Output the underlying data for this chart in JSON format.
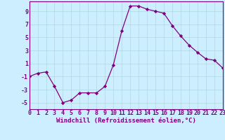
{
  "x": [
    0,
    1,
    2,
    3,
    4,
    5,
    6,
    7,
    8,
    9,
    10,
    11,
    12,
    13,
    14,
    15,
    16,
    17,
    18,
    19,
    20,
    21,
    22,
    23
  ],
  "y": [
    -1.0,
    -0.5,
    -0.3,
    -2.5,
    -5.0,
    -4.6,
    -3.5,
    -3.5,
    -3.5,
    -2.5,
    0.8,
    6.0,
    9.8,
    9.8,
    9.3,
    9.0,
    8.7,
    6.8,
    5.2,
    3.8,
    2.7,
    1.7,
    1.5,
    0.3
  ],
  "line_color": "#800080",
  "marker": "D",
  "marker_size": 2.2,
  "bg_color": "#cceeff",
  "grid_color": "#b0dde8",
  "ylim": [
    -6,
    10.5
  ],
  "xlim": [
    0,
    23
  ],
  "yticks": [
    -5,
    -3,
    -1,
    1,
    3,
    5,
    7,
    9
  ],
  "xticks": [
    0,
    1,
    2,
    3,
    4,
    5,
    6,
    7,
    8,
    9,
    10,
    11,
    12,
    13,
    14,
    15,
    16,
    17,
    18,
    19,
    20,
    21,
    22,
    23
  ],
  "xlabel": "Windchill (Refroidissement éolien,°C)",
  "tick_color": "#800080",
  "label_color": "#800080",
  "label_fontsize": 6.5,
  "tick_fontsize": 6.0,
  "spine_color": "#800080"
}
